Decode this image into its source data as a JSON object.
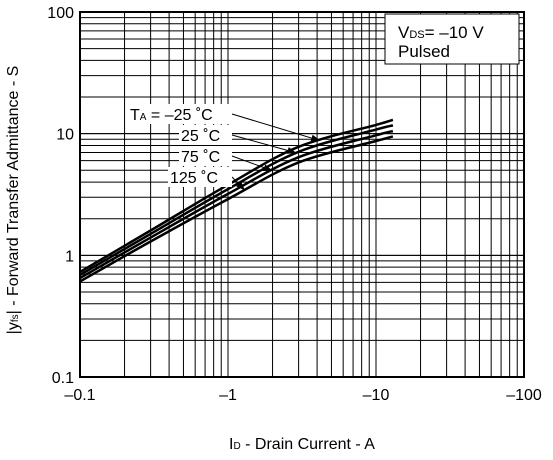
{
  "chart_data": {
    "type": "line",
    "xlabel_main": "I",
    "xlabel_sub": "D",
    "xlabel_rest": "  -  Drain Current -  A",
    "ylabel_main": "|y",
    "ylabel_sub": "fs",
    "ylabel_rest": "| -  Forward Transfer Admittance -  S",
    "x_scale": "log",
    "y_scale": "log",
    "xlim": [
      -0.1,
      -100
    ],
    "ylim": [
      0.1,
      100
    ],
    "x_ticks": [
      {
        "value": 0.1,
        "label": "–0.1"
      },
      {
        "value": 1,
        "label": "–1"
      },
      {
        "value": 10,
        "label": "–10"
      },
      {
        "value": 100,
        "label": "–100"
      }
    ],
    "y_ticks": [
      {
        "value": 0.1,
        "label": "0.1"
      },
      {
        "value": 1,
        "label": "1"
      },
      {
        "value": 10,
        "label": "10"
      },
      {
        "value": 100,
        "label": "100"
      }
    ],
    "grid": true,
    "annotation": {
      "line1_main": "V",
      "line1_sub": "DS",
      "line1_rest": "= –10 V",
      "line2": "Pulsed"
    },
    "series": [
      {
        "name": "TA = –25 °C",
        "label_main": "T",
        "label_sub": "A",
        "label_rest": " = –25 ˚C",
        "x": [
          -0.1,
          -0.3,
          -1,
          -3,
          -10,
          -13
        ],
        "y": [
          0.73,
          1.6,
          3.8,
          7.8,
          11.8,
          13.0
        ]
      },
      {
        "name": "25 °C",
        "label": "25 ˚C",
        "x": [
          -0.1,
          -0.3,
          -1,
          -3,
          -10,
          -13
        ],
        "y": [
          0.69,
          1.5,
          3.5,
          7.1,
          10.8,
          11.7
        ]
      },
      {
        "name": "75 °C",
        "label": "75 ˚C",
        "x": [
          -0.1,
          -0.3,
          -1,
          -3,
          -10,
          -13
        ],
        "y": [
          0.65,
          1.4,
          3.2,
          6.4,
          9.7,
          10.5
        ]
      },
      {
        "name": "125 °C",
        "label": "125 ˚C",
        "x": [
          -0.1,
          -0.3,
          -1,
          -3,
          -10,
          -13
        ],
        "y": [
          0.61,
          1.3,
          2.9,
          5.8,
          8.7,
          9.5
        ]
      }
    ]
  }
}
